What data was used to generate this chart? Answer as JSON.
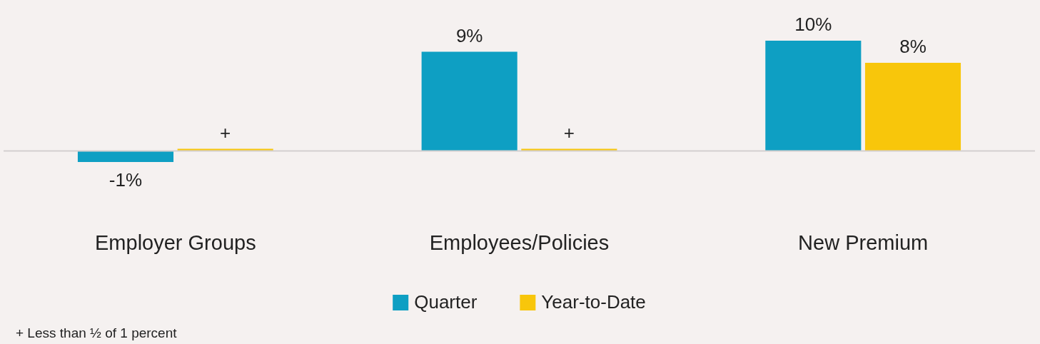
{
  "chart_data": {
    "type": "bar",
    "categories": [
      "Employer Groups",
      "Employees/Policies",
      "New Premium"
    ],
    "series": [
      {
        "name": "Quarter",
        "color": "#0e9fc3",
        "values": [
          -1,
          9,
          10
        ],
        "value_labels": [
          "-1%",
          "9%",
          "10%"
        ]
      },
      {
        "name": "Year-to-Date",
        "color": "#f8c60b",
        "values": [
          0.2,
          0.2,
          8
        ],
        "value_labels": [
          "+",
          "+",
          "8%"
        ]
      }
    ],
    "legend": "bottom",
    "annotations": [
      "+ Less than ½ of 1 percent"
    ]
  }
}
